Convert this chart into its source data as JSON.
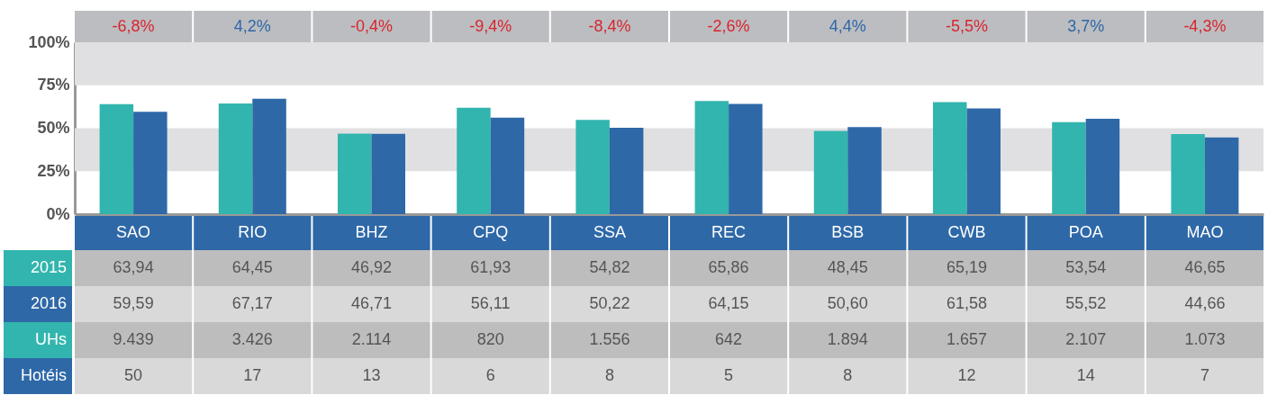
{
  "chart_data": {
    "type": "bar",
    "categories": [
      "SAO",
      "RIO",
      "BHZ",
      "CPQ",
      "SSA",
      "REC",
      "BSB",
      "CWB",
      "POA",
      "MAO"
    ],
    "series": [
      {
        "name": "2015",
        "color": "#32b5ae",
        "values": [
          63.94,
          64.45,
          46.92,
          61.93,
          54.82,
          65.86,
          48.45,
          65.19,
          53.54,
          46.65
        ],
        "value_labels": [
          "63,94",
          "64,45",
          "46,92",
          "61,93",
          "54,82",
          "65,86",
          "48,45",
          "65,19",
          "53,54",
          "46,65"
        ]
      },
      {
        "name": "2016",
        "color": "#2e68a7",
        "values": [
          59.59,
          67.17,
          46.71,
          56.11,
          50.22,
          64.15,
          50.6,
          61.58,
          55.52,
          44.66
        ],
        "value_labels": [
          "59,59",
          "67,17",
          "46,71",
          "56,11",
          "50,22",
          "64,15",
          "50,60",
          "61,58",
          "55,52",
          "44,66"
        ]
      }
    ],
    "ylim": [
      0,
      100
    ],
    "yticks": [
      {
        "value": 0,
        "label": "0%"
      },
      {
        "value": 25,
        "label": "25%"
      },
      {
        "value": 50,
        "label": "50%"
      },
      {
        "value": 75,
        "label": "75%"
      },
      {
        "value": 100,
        "label": "100%"
      }
    ],
    "bands": [
      {
        "axis": "y",
        "from": 25,
        "to": 50,
        "color": "#e0e0e2"
      },
      {
        "axis": "y",
        "from": 75,
        "to": 100,
        "color": "#e0e0e2"
      }
    ],
    "legend": false,
    "annotations": [
      "-6,8%",
      "4,2%",
      "-0,4%",
      "-9,4%",
      "-8,4%",
      "-2,6%",
      "4,4%",
      "-5,5%",
      "3,7%",
      "-4,3%",
      "UHs",
      "9.439",
      "3.426",
      "2.114",
      "820",
      "1.556",
      "642",
      "1.894",
      "1.657",
      "2.107",
      "1.073",
      "Hotéis",
      "50",
      "17",
      "13",
      "6",
      "8",
      "5",
      "8",
      "12",
      "14",
      "7"
    ]
  }
}
